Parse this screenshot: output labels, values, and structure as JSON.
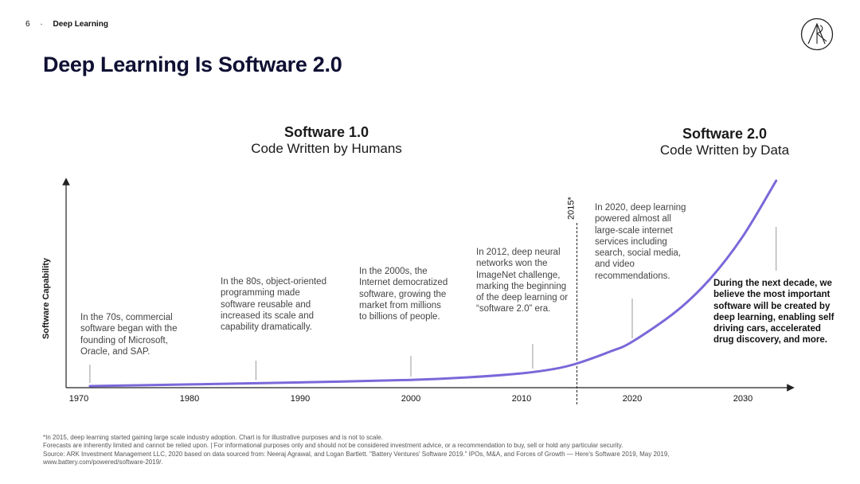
{
  "header": {
    "page_number": "6",
    "separator": "·",
    "section": "Deep Learning"
  },
  "logo": {
    "text": "ARK",
    "icon": "ark-logo-icon"
  },
  "title": "Deep Learning Is Software 2.0",
  "eras": {
    "software1": {
      "name": "Software 1.0",
      "subtitle": "Code Written by Humans"
    },
    "software2": {
      "name": "Software 2.0",
      "subtitle": "Code Written by Data"
    }
  },
  "annotations": [
    {
      "text": "In the 70s, commercial software began with the founding of Microsoft, Oracle, and SAP.",
      "year": 1971
    },
    {
      "text": "In the 80s, object-oriented programming made software reusable and increased its scale and capability dramatically.",
      "year": 1986
    },
    {
      "text": "In the 2000s, the Internet democratized software, growing the market from millions to billions of people.",
      "year": 2000
    },
    {
      "text": "In 2012, deep neural networks won the ImageNet challenge, marking the beginning of the deep learning or “software 2.0” era.",
      "year": 2011
    },
    {
      "text": "In 2020, deep learning powered almost all large-scale internet services including search, social media, and video recommendations.",
      "year": 2020
    },
    {
      "text": "During the next decade, we believe the most important software will be created by deep learning, enabling self driving cars, accelerated drug discovery, and more.",
      "year": 2033,
      "bold": true
    }
  ],
  "chart_data": {
    "type": "line",
    "title": "Deep Learning Is Software 2.0",
    "xlabel": "",
    "ylabel": "Software Capability",
    "xlim": [
      1970,
      2034
    ],
    "ylim": [
      0,
      100
    ],
    "x_ticks": [
      "1970",
      "1980",
      "1990",
      "2000",
      "2010",
      "2020",
      "2030"
    ],
    "marker": {
      "x": 2015,
      "label": "2015*",
      "style": "dashed"
    },
    "series": [
      {
        "name": "Software Capability",
        "color": "#7b68d9",
        "x": [
          1971,
          1980,
          1990,
          2000,
          2005,
          2010,
          2013,
          2015,
          2018,
          2020,
          2024,
          2027,
          2030,
          2033
        ],
        "values": [
          0.0,
          0.8,
          1.8,
          3.0,
          4.2,
          6.2,
          8.4,
          11.0,
          16.8,
          21.6,
          36.5,
          52.0,
          73.0,
          100.0
        ]
      }
    ]
  },
  "footer": {
    "lines": [
      "*In 2015, deep learning started gaining large scale industry adoption. Chart is for illustrative purposes and is not to scale.",
      "Forecasts are inherently limited and cannot be relied upon.  |   For informational purposes only and should not be considered investment advice, or a recommendation to buy, sell or hold any particular security.",
      "Source: ARK Investment Management LLC, 2020 based on data sourced from: Neeraj Agrawal, and Logan Bartlett. \"Battery Ventures' Software 2019.\" IPOs, M&A, and Forces of Growth — Here's Software 2019, May 2019,",
      "www.battery.com/powered/software-2019/."
    ]
  }
}
